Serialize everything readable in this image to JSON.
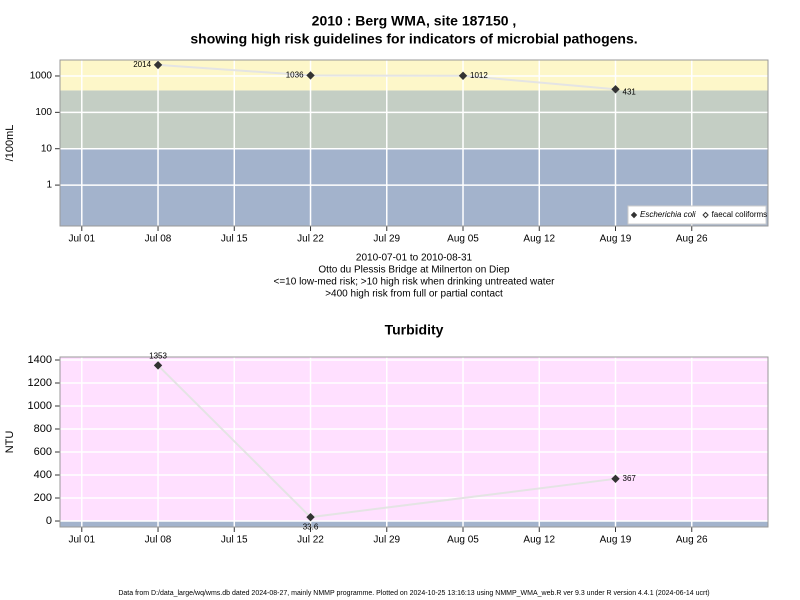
{
  "chart_data": [
    {
      "type": "line",
      "title": [
        "2010 : Berg WMA, site 187150 ,",
        "showing high risk guidelines for indicators of microbial pathogens."
      ],
      "subtitle": [
        "2010-07-01 to 2010-08-31",
        "Otto du Plessis Bridge at Milnerton on Diep",
        "<=10 low-med risk; >10 high risk when drinking untreated water",
        ">400 high risk from full or partial contact"
      ],
      "y_label": "/100mL",
      "log_scale": true,
      "grid": true,
      "x": [
        "Jul 08",
        "Jul 22",
        "Aug 05",
        "Aug 19"
      ],
      "xlim": [
        "Jun 29",
        "Sep 02"
      ],
      "xticks": [
        "Jul 01",
        "Jul 08",
        "Jul 15",
        "Jul 22",
        "Jul 29",
        "Aug 05",
        "Aug 12",
        "Aug 19",
        "Aug 26"
      ],
      "ylim": [
        0.075,
        2750
      ],
      "yticks": [
        1,
        10,
        100,
        1000
      ],
      "thresholds": [
        10,
        400
      ],
      "band_colors": [
        "#a3b3cc",
        "#c4cec4",
        "#fdf7c9"
      ],
      "legend": "bottom-right",
      "series": [
        {
          "name": "Escherichia coli",
          "color": "#333333",
          "marker": "filled",
          "values": [
            2014,
            1036,
            1012,
            431
          ]
        },
        {
          "name": "faecal coliforms",
          "color": "#333333",
          "marker": "open",
          "values": [
            null,
            null,
            null,
            null
          ]
        }
      ]
    },
    {
      "type": "line",
      "title": "Turbidity",
      "y_label": "NTU",
      "log_scale": false,
      "grid": true,
      "x": [
        "Jul 08",
        "Jul 22",
        "Aug 19"
      ],
      "xlim": [
        "Jun 29",
        "Sep 02"
      ],
      "xticks": [
        "Jul 01",
        "Jul 08",
        "Jul 15",
        "Jul 22",
        "Jul 29",
        "Aug 05",
        "Aug 12",
        "Aug 19",
        "Aug 26"
      ],
      "ylim": [
        -52,
        1426
      ],
      "yticks": [
        0,
        200,
        400,
        600,
        800,
        1000,
        1200,
        1400
      ],
      "thresholds": [
        0
      ],
      "band_colors": [
        "#a3b3cc",
        "#ffe0ff"
      ],
      "series": [
        {
          "name": "Turbidity",
          "color": "#333333",
          "marker": "filled",
          "values": [
            1353,
            33.6,
            367
          ]
        }
      ]
    }
  ],
  "footer": "Data from D:/data_large/wq/wms.db dated 2024-08-27, mainly NMMP programme. Plotted on 2024-10-25 13:16:13 using NMMP_WMA_web.R ver 9.3 under R version 4.4.1 (2024-06-14 ucrt)"
}
